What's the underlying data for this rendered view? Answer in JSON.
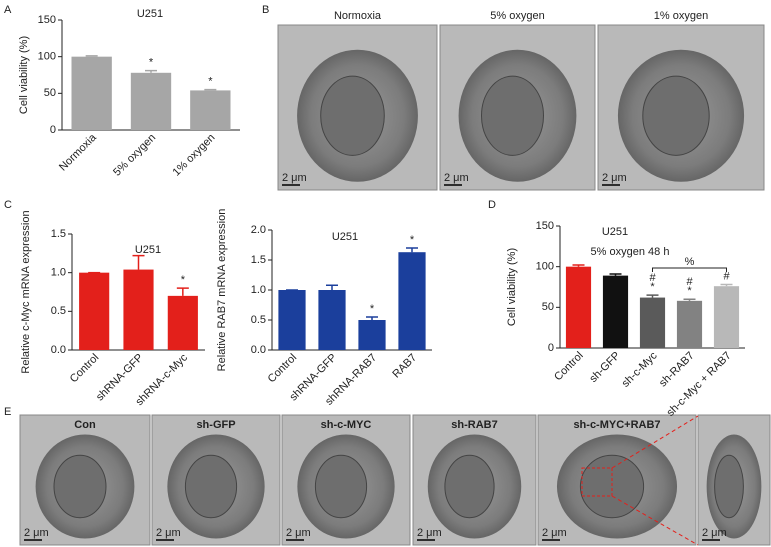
{
  "panel_labels": [
    "A",
    "B",
    "C",
    "D",
    "E"
  ],
  "chart_data": [
    {
      "type": "bar",
      "title": "U251",
      "y_label": "Cell viability (%)",
      "categories": [
        "Normoxia",
        "5% oxygen",
        "1% oxygen"
      ],
      "values": [
        100,
        78,
        54
      ],
      "errors": [
        1,
        3,
        1
      ],
      "significance": [
        null,
        "*",
        "*"
      ],
      "color": "#a6a6a6",
      "ylim": [
        0,
        150
      ],
      "yticks": [
        0,
        50,
        100,
        150
      ]
    },
    {
      "type": "bar",
      "title": "U251",
      "y_label": "Relative c-Myc mRNA expression",
      "categories": [
        "Control",
        "shRNA-GFP",
        "shRNA-c-Myc"
      ],
      "values": [
        1.0,
        1.04,
        0.7
      ],
      "errors": [
        0,
        0.18,
        0.1
      ],
      "significance": [
        null,
        null,
        "*"
      ],
      "color": "#e3201b",
      "ylim": [
        0,
        1.5
      ],
      "yticks": [
        {
          "value": 0,
          "label": "0.0"
        },
        0.5,
        {
          "value": 1,
          "label": "1.0"
        },
        1.5
      ]
    },
    {
      "type": "bar",
      "title": "U251",
      "y_label": "Relative RAB7 mRNA expression",
      "categories": [
        "Control",
        "shRNA-GFP",
        "shRNA-RAB7",
        "RAB7"
      ],
      "values": [
        1.0,
        1.0,
        0.5,
        1.63
      ],
      "errors": [
        0,
        0.08,
        0.05,
        0.07
      ],
      "significance": [
        null,
        null,
        "*",
        "*"
      ],
      "color": "#1b3f9c",
      "ylim": [
        0,
        2
      ],
      "yticks": [
        {
          "value": 0,
          "label": "0.0"
        },
        0.5,
        {
          "value": 1,
          "label": "1.0"
        },
        1.5,
        {
          "value": 2,
          "label": "2.0"
        }
      ]
    },
    {
      "type": "bar",
      "title": "U251",
      "subtitle": "5% oxygen 48 h",
      "y_label": "Cell viability (%)",
      "categories": [
        "Control",
        "sh-GFP",
        "sh-c-Myc",
        "sh-RAB7",
        "sh-c-Myc + RAB7"
      ],
      "values": [
        100,
        89,
        62,
        58,
        76
      ],
      "errors": [
        2,
        2,
        3,
        2,
        2
      ],
      "significance": [
        null,
        null,
        [
          "#",
          "*"
        ],
        [
          "#",
          "*"
        ],
        [
          "#"
        ]
      ],
      "bracket_label": "%",
      "colors": [
        "#e3201b",
        "#111111",
        "#5a5a5a",
        "#828282",
        "#b8b8b8"
      ],
      "ylim": [
        0,
        150
      ],
      "yticks": [
        0,
        50,
        100,
        150
      ]
    }
  ],
  "images_b": {
    "captions": [
      "Normoxia",
      "5% oxygen",
      "1% oxygen"
    ],
    "scale_bars": [
      "2 μm",
      "2 μm",
      "2 μm"
    ]
  },
  "images_e": {
    "captions": [
      "Con",
      "sh-GFP",
      "sh-c-MYC",
      "sh-RAB7",
      "sh-c-MYC+RAB7",
      null
    ],
    "scale_bars": [
      "2 μm",
      "2 μm",
      "2 μm",
      "2 μm",
      "2 μm",
      "2 μm"
    ]
  }
}
